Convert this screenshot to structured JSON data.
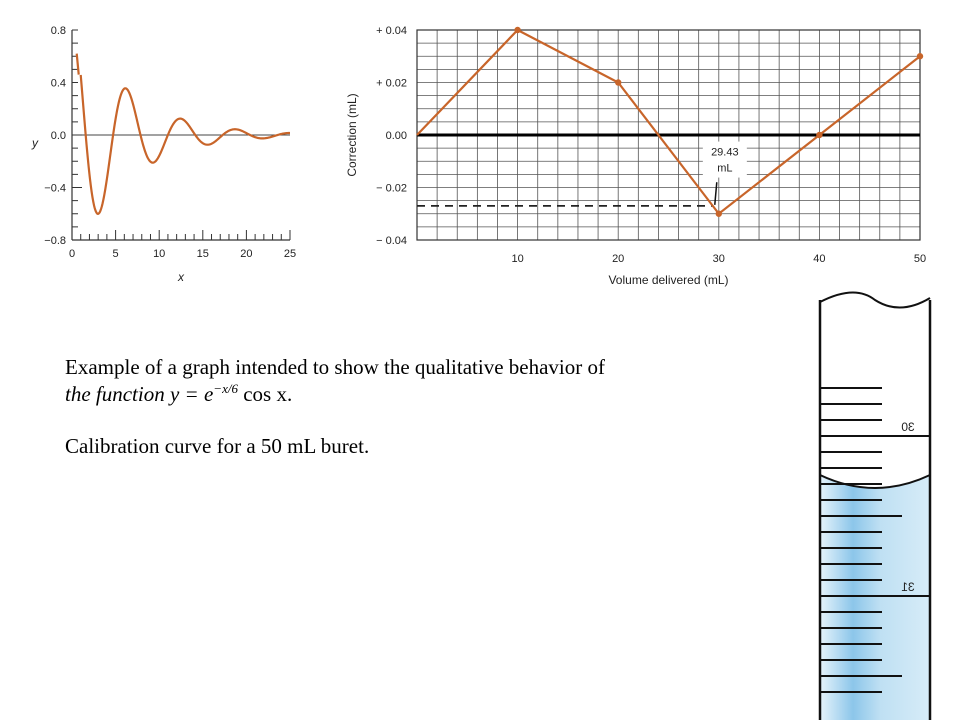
{
  "chart_data": [
    {
      "type": "line",
      "title": "",
      "xlabel": "x",
      "ylabel": "y",
      "xlim": [
        0,
        25
      ],
      "ylim": [
        -0.8,
        0.8
      ],
      "xticks": [
        "0",
        "5",
        "10",
        "15",
        "20",
        "25"
      ],
      "yticks": [
        "0.8",
        "0.4",
        "0.0",
        "−0.4",
        "−0.8"
      ],
      "function": "y = e^(-x/6) cos x",
      "series": [
        {
          "name": "",
          "x": [
            0,
            1,
            2,
            3,
            4,
            5,
            6,
            7,
            8,
            9,
            10,
            11,
            12,
            13,
            14,
            15,
            16,
            17,
            18,
            19,
            20,
            21,
            22,
            23,
            24,
            25
          ],
          "y": [
            1.0,
            0.457,
            -0.297,
            -0.6,
            -0.336,
            0.123,
            0.353,
            0.236,
            -0.038,
            -0.203,
            -0.158,
            0.001,
            0.114,
            0.101,
            0.012,
            -0.062,
            -0.062,
            -0.016,
            0.033,
            0.036,
            0.015,
            -0.017,
            -0.021,
            -0.011,
            0.008,
            0.01
          ],
          "color": "#c8652a"
        }
      ],
      "grid": false
    },
    {
      "type": "line",
      "title": "",
      "xlabel": "Volume delivered (mL)",
      "ylabel": "Correction (mL)",
      "xlim": [
        0,
        50
      ],
      "ylim": [
        -0.04,
        0.04
      ],
      "xticks": [
        "10",
        "20",
        "30",
        "40",
        "50"
      ],
      "yticks": [
        "+ 0.04",
        "+ 0.02",
        "0.00",
        "− 0.02",
        "− 0.04"
      ],
      "series": [
        {
          "name": "",
          "x": [
            0,
            10,
            20,
            30,
            40,
            50
          ],
          "y": [
            0.0,
            0.04,
            0.02,
            -0.03,
            0.0,
            0.03
          ],
          "color": "#c8652a"
        }
      ],
      "annotation": {
        "text": [
          "29.43",
          "mL"
        ],
        "reading": -0.027
      },
      "grid": true
    }
  ],
  "captions": {
    "line1_prefix": "Example of a graph intended to show the qualitative behavior of",
    "line2_prefix": "the function  y = e",
    "line2_exponent": "−x/6",
    "line2_suffix": " cos x.",
    "line3": "Calibration curve for a 50 mL buret."
  },
  "buret": {
    "scale_labels": [
      "30",
      "31"
    ],
    "fluid_color": "#bfe0f3"
  }
}
